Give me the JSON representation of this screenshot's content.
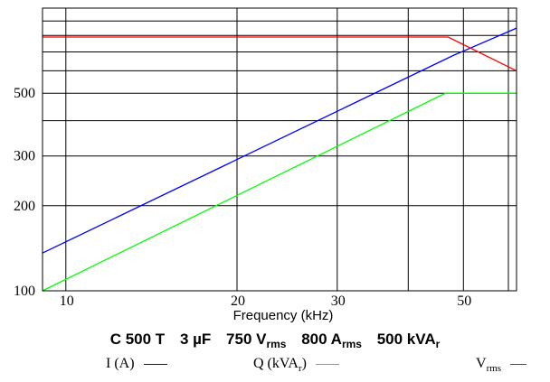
{
  "chart_data": {
    "type": "line",
    "title": {
      "model": "C 500 T",
      "capacitance": "3 µF",
      "voltage": "750 V",
      "voltage_sub": "rms",
      "current": "800 A",
      "current_sub": "rms",
      "power": "500 kVA",
      "power_sub": "r"
    },
    "xlabel": "Frequency (kHz)",
    "x_scale": "log",
    "y_scale": "log",
    "xlim": [
      9.1,
      62
    ],
    "ylim": [
      100,
      1000
    ],
    "x_ticks": [
      {
        "value": 10,
        "label": "10"
      },
      {
        "value": 20,
        "label": "20"
      },
      {
        "value": 30,
        "label": "30"
      },
      {
        "value": 50,
        "label": "50"
      }
    ],
    "y_ticks": [
      {
        "value": 100,
        "label": "100"
      },
      {
        "value": 200,
        "label": "200"
      },
      {
        "value": 300,
        "label": "300"
      },
      {
        "value": 500,
        "label": "500"
      }
    ],
    "x_gridlines": [
      10,
      20,
      30,
      40,
      50,
      60
    ],
    "y_gridlines": [
      200,
      300,
      400,
      500,
      600,
      700,
      800,
      900
    ],
    "grid": true,
    "series": [
      {
        "name": "I (A)",
        "color": "#0000ff",
        "x": [
          9.1,
          48,
          62
        ],
        "y": [
          136,
          680,
          850
        ]
      },
      {
        "name": "Q (kVA",
        "name_sub": "r",
        "name_tail": ")",
        "color": "#00ff00",
        "x": [
          9.1,
          46.5,
          62
        ],
        "y": [
          100,
          500,
          500
        ]
      },
      {
        "name": "V",
        "name_sub": "rms",
        "color": "#ff0000",
        "x": [
          9.1,
          47,
          62
        ],
        "y": [
          790,
          790,
          600
        ]
      }
    ],
    "legend_position": "bottom"
  }
}
